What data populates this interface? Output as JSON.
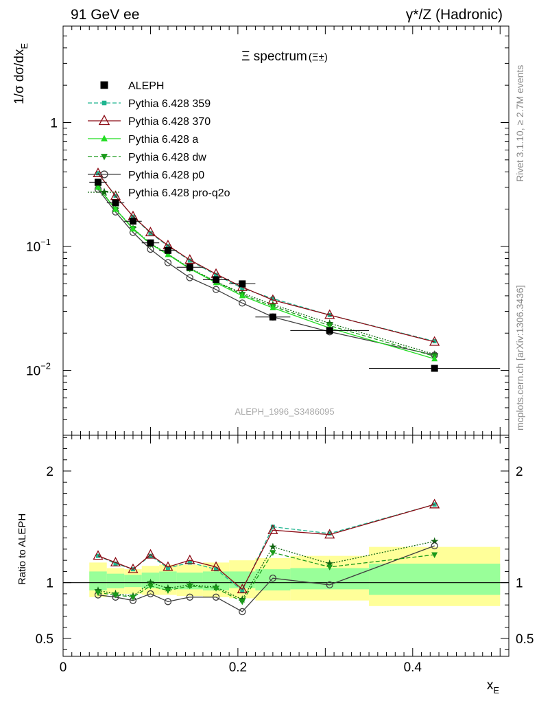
{
  "header": {
    "left_title": "91 GeV ee",
    "right_title": "γ*/Z (Hadronic)"
  },
  "side_text": {
    "top": "Rivet 3.1.10, ≥ 2.7M events",
    "bottom": "mcplots.cern.ch [arXiv:1306.3436]"
  },
  "chart_data": [
    {
      "type": "scatter",
      "panel": "main",
      "title": "Ξ spectrum",
      "title_suffix": "(Ξ±)",
      "ylabel": "1/σ dσ/dx",
      "ylabel_sub": "E",
      "watermark": "ALEPH_1996_S3486095",
      "yscale": "log",
      "ylim": [
        0.003,
        6.0
      ],
      "xlim": [
        0,
        0.51
      ],
      "yticks": [
        {
          "value": 1,
          "label": "1"
        },
        {
          "value": 0.1,
          "label": "10",
          "exp": "−1"
        },
        {
          "value": 0.01,
          "label": "10",
          "exp": "−2"
        }
      ],
      "x": [
        0.04,
        0.06,
        0.08,
        0.1,
        0.12,
        0.145,
        0.175,
        0.205,
        0.24,
        0.305,
        0.425
      ],
      "x_bins": [
        [
          0.03,
          0.05
        ],
        [
          0.05,
          0.07
        ],
        [
          0.07,
          0.09
        ],
        [
          0.09,
          0.11
        ],
        [
          0.11,
          0.13
        ],
        [
          0.13,
          0.16
        ],
        [
          0.16,
          0.19
        ],
        [
          0.19,
          0.22
        ],
        [
          0.22,
          0.26
        ],
        [
          0.26,
          0.35
        ],
        [
          0.35,
          0.5
        ]
      ],
      "series": [
        {
          "name": "ALEPH",
          "color": "#000000",
          "marker": "square",
          "line": "none",
          "values": [
            0.33,
            0.225,
            0.16,
            0.107,
            0.093,
            0.068,
            0.054,
            0.05,
            0.027,
            0.021,
            0.0104
          ]
        },
        {
          "name": "Pythia 6.428 359",
          "color": "#1fb58f",
          "marker": "small-square",
          "line": "dashed",
          "values": [
            0.39,
            0.256,
            0.174,
            0.128,
            0.101,
            0.077,
            0.059,
            0.046,
            0.038,
            0.028,
            0.0172
          ]
        },
        {
          "name": "Pythia 6.428 370",
          "color": "#8b0a14",
          "marker": "open-triangle",
          "line": "solid",
          "values": [
            0.39,
            0.255,
            0.175,
            0.13,
            0.102,
            0.078,
            0.06,
            0.047,
            0.037,
            0.028,
            0.017
          ]
        },
        {
          "name": "Pythia 6.428 a",
          "color": "#22dd22",
          "marker": "triangle",
          "line": "solid",
          "values": [
            0.3,
            0.2,
            0.138,
            0.105,
            0.086,
            0.066,
            0.051,
            0.04,
            0.032,
            0.022,
            0.0124
          ]
        },
        {
          "name": "Pythia 6.428 dw",
          "color": "#1a9a1a",
          "marker": "triangle-down",
          "line": "dashed",
          "values": [
            0.3,
            0.2,
            0.14,
            0.104,
            0.087,
            0.066,
            0.052,
            0.041,
            0.033,
            0.023,
            0.013
          ]
        },
        {
          "name": "Pythia 6.428 p0",
          "color": "#404040",
          "marker": "open-circle",
          "line": "solid",
          "values": [
            0.29,
            0.19,
            0.13,
            0.095,
            0.074,
            0.056,
            0.045,
            0.035,
            0.027,
            0.0205,
            0.0133
          ]
        },
        {
          "name": "Pythia 6.428 pro-q2o",
          "color": "#116611",
          "marker": "star",
          "line": "dotted",
          "values": [
            0.305,
            0.2,
            0.14,
            0.106,
            0.087,
            0.067,
            0.052,
            0.042,
            0.034,
            0.024,
            0.0135
          ]
        }
      ]
    },
    {
      "type": "scatter",
      "panel": "ratio",
      "ylabel": "Ratio to ALEPH",
      "xlabel": "x",
      "xlabel_sub": "E",
      "ylim": [
        0.34,
        2.32
      ],
      "xlim": [
        0,
        0.51
      ],
      "xticks": [
        {
          "value": 0,
          "label": "0"
        },
        {
          "value": 0.2,
          "label": "0.2"
        },
        {
          "value": 0.4,
          "label": "0.4"
        }
      ],
      "yticks": [
        {
          "value": 2,
          "label": "2"
        },
        {
          "value": 1,
          "label": "1"
        },
        {
          "value": 0.5,
          "label": "0.5"
        }
      ],
      "bands": {
        "x_bins": [
          [
            0.03,
            0.05
          ],
          [
            0.05,
            0.07
          ],
          [
            0.07,
            0.09
          ],
          [
            0.09,
            0.11
          ],
          [
            0.11,
            0.13
          ],
          [
            0.13,
            0.16
          ],
          [
            0.16,
            0.19
          ],
          [
            0.19,
            0.22
          ],
          [
            0.22,
            0.26
          ],
          [
            0.26,
            0.35
          ],
          [
            0.35,
            0.5
          ]
        ],
        "inner": [
          [
            0.93,
            1.1
          ],
          [
            0.95,
            1.08
          ],
          [
            0.96,
            1.07
          ],
          [
            0.95,
            1.09
          ],
          [
            0.94,
            1.1
          ],
          [
            0.94,
            1.09
          ],
          [
            0.93,
            1.1
          ],
          [
            0.95,
            1.1
          ],
          [
            0.93,
            1.12
          ],
          [
            0.94,
            1.13
          ],
          [
            0.89,
            1.17
          ]
        ],
        "outer": [
          [
            0.87,
            1.18
          ],
          [
            0.9,
            1.13
          ],
          [
            0.9,
            1.12
          ],
          [
            0.89,
            1.15
          ],
          [
            0.89,
            1.16
          ],
          [
            0.88,
            1.16
          ],
          [
            0.87,
            1.18
          ],
          [
            0.86,
            1.2
          ],
          [
            0.84,
            1.22
          ],
          [
            0.84,
            1.24
          ],
          [
            0.79,
            1.32
          ]
        ],
        "inner_color": "#99ff99",
        "outer_color": "#ffff99"
      },
      "series": [
        {
          "name": "Pythia 6.428 359",
          "values": [
            1.24,
            1.17,
            1.12,
            1.24,
            1.13,
            1.18,
            1.12,
            0.93,
            1.5,
            1.44,
            1.7
          ]
        },
        {
          "name": "Pythia 6.428 370",
          "values": [
            1.24,
            1.18,
            1.12,
            1.25,
            1.14,
            1.2,
            1.14,
            0.94,
            1.47,
            1.43,
            1.7
          ]
        },
        {
          "name": "Pythia 6.428 a",
          "values": [
            0.91,
            0.9,
            0.88,
            0.99,
            0.94,
            0.97,
            0.94,
            0.82,
            1.26,
            1.12,
            1.22
          ]
        },
        {
          "name": "Pythia 6.428 dw",
          "values": [
            0.91,
            0.89,
            0.87,
            0.97,
            0.93,
            0.97,
            0.95,
            0.83,
            1.27,
            1.14,
            1.25
          ]
        },
        {
          "name": "Pythia 6.428 p0",
          "values": [
            0.89,
            0.87,
            0.84,
            0.9,
            0.83,
            0.87,
            0.87,
            0.74,
            1.04,
            0.98,
            1.33
          ]
        },
        {
          "name": "Pythia 6.428 pro-q2o",
          "values": [
            0.93,
            0.9,
            0.88,
            1.0,
            0.95,
            0.98,
            0.96,
            0.85,
            1.32,
            1.17,
            1.37
          ]
        }
      ]
    }
  ]
}
